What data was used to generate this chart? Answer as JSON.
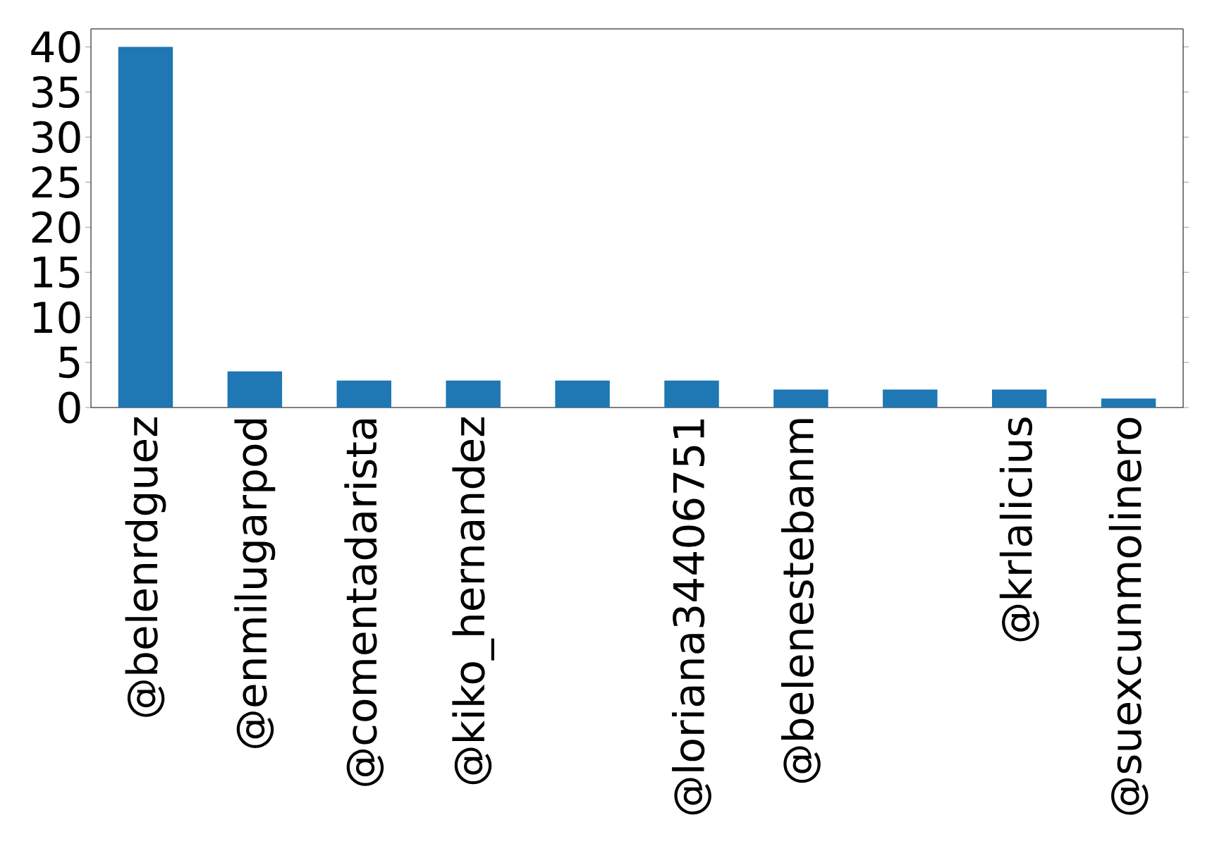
{
  "chart_data": {
    "type": "bar",
    "categories": [
      "@belenrdguez",
      "@enmilugarpod",
      "@comentadarista",
      "@kiko_hernandez",
      null,
      "@loriana34406751",
      "@belenestebanm",
      null,
      "@krlalicius",
      "@suexcunmolinero"
    ],
    "values": [
      40,
      4,
      3,
      3,
      3,
      3,
      2,
      2,
      2,
      1
    ],
    "color": "#1f77b4",
    "ylim": [
      0,
      42
    ],
    "yticks": [
      0,
      5,
      10,
      15,
      20,
      25,
      30,
      35,
      40
    ]
  }
}
